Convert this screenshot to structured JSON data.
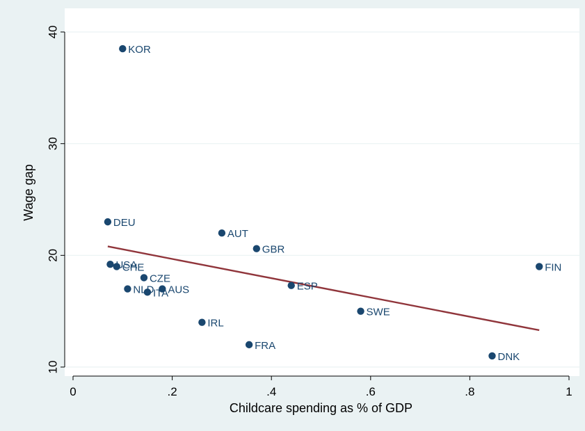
{
  "colors": {
    "outer_background": "#eaf2f3",
    "plot_background": "#ffffff",
    "gridline": "#eaf2f3",
    "marker": "#1a476f",
    "fit_line": "#90353b",
    "axis_text": "#000000"
  },
  "chart_data": {
    "type": "scatter",
    "title": "",
    "xlabel": "Childcare spending as % of GDP",
    "ylabel": "Wage gap",
    "xlim": [
      -0.01,
      1.01
    ],
    "ylim": [
      9.3,
      41.5
    ],
    "x_ticks": [
      {
        "value": 0,
        "label": "0"
      },
      {
        "value": 0.2,
        "label": ".2"
      },
      {
        "value": 0.4,
        "label": ".4"
      },
      {
        "value": 0.6,
        "label": ".6"
      },
      {
        "value": 0.8,
        "label": ".8"
      },
      {
        "value": 1,
        "label": "1"
      }
    ],
    "y_ticks": [
      {
        "value": 10,
        "label": "10"
      },
      {
        "value": 20,
        "label": "20"
      },
      {
        "value": 30,
        "label": "30"
      },
      {
        "value": 40,
        "label": "40"
      }
    ],
    "grid": "horizontal",
    "legend": "none",
    "points": [
      {
        "label": "KOR",
        "x": 0.1,
        "y": 38.5
      },
      {
        "label": "DEU",
        "x": 0.07,
        "y": 23.0
      },
      {
        "label": "AUT",
        "x": 0.3,
        "y": 22.0
      },
      {
        "label": "GBR",
        "x": 0.37,
        "y": 20.6
      },
      {
        "label": "USA",
        "x": 0.075,
        "y": 19.2
      },
      {
        "label": "CHE",
        "x": 0.088,
        "y": 19.0
      },
      {
        "label": "FIN",
        "x": 0.94,
        "y": 19.0
      },
      {
        "label": "CZE",
        "x": 0.143,
        "y": 18.0
      },
      {
        "label": "ESP",
        "x": 0.44,
        "y": 17.3
      },
      {
        "label": "NLD",
        "x": 0.11,
        "y": 17.0
      },
      {
        "label": "AUS",
        "x": 0.18,
        "y": 17.0
      },
      {
        "label": "ITA",
        "x": 0.15,
        "y": 16.7
      },
      {
        "label": "SWE",
        "x": 0.58,
        "y": 15.0
      },
      {
        "label": "IRL",
        "x": 0.26,
        "y": 14.0
      },
      {
        "label": "FRA",
        "x": 0.355,
        "y": 12.0
      },
      {
        "label": "DNK",
        "x": 0.845,
        "y": 11.0
      }
    ],
    "fit_line": {
      "x": [
        0.07,
        0.94
      ],
      "y": [
        20.8,
        13.3
      ]
    }
  }
}
